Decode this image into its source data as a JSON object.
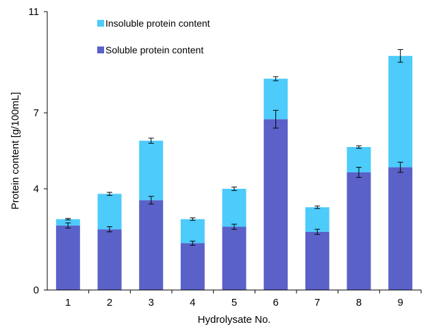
{
  "chart_data": {
    "type": "bar",
    "stacked": true,
    "categories": [
      "1",
      "2",
      "3",
      "4",
      "5",
      "6",
      "7",
      "8",
      "9"
    ],
    "xlabel": "Hydrolysate No.",
    "ylabel": "Protein content [g/100mL]",
    "ylim": [
      0,
      11
    ],
    "yticks": [
      "0",
      "4",
      "7",
      "11"
    ],
    "ytick_values": [
      0,
      4,
      7,
      11
    ],
    "grid": false,
    "legend_position": "top-left",
    "series": [
      {
        "name": "Soluble protein content",
        "color": "#5a61c8",
        "values": [
          2.55,
          2.4,
          3.55,
          1.85,
          2.5,
          6.75,
          2.3,
          4.65,
          4.85
        ],
        "errors": [
          0.1,
          0.1,
          0.15,
          0.08,
          0.1,
          0.35,
          0.1,
          0.2,
          0.2
        ]
      },
      {
        "name": "Insoluble protein content",
        "color": "#4dcbfb",
        "values": [
          0.25,
          1.4,
          2.35,
          0.95,
          1.5,
          1.6,
          0.97,
          1.0,
          4.4
        ],
        "errors": [
          0.03,
          0.06,
          0.1,
          0.05,
          0.07,
          0.08,
          0.05,
          0.05,
          0.25
        ]
      }
    ]
  }
}
